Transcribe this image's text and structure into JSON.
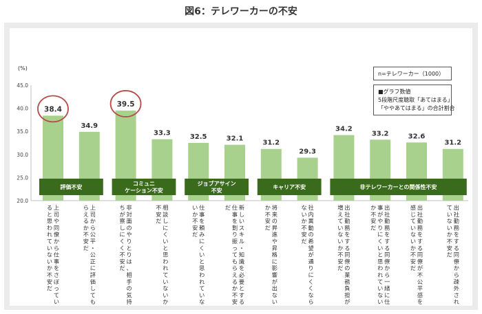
{
  "title": "図6：テレワーカーの不安",
  "legend": {
    "sample": "n=テレワーカー（1000）",
    "note_title": "■グラフ数値",
    "note_line1": "5段階尺度聴取「あてはまる」",
    "note_line2": "「ややあてはまる」の合計割合"
  },
  "colors": {
    "bar": "#a9d18e",
    "band": "#3a6b1c",
    "band_text": "#ffffff",
    "circle": "#b94a48",
    "frame": "#ebebeb"
  },
  "chart_data": {
    "type": "bar",
    "ylabel": "(%)",
    "ylim": [
      20,
      45
    ],
    "yticks": [
      "20.0",
      "25.0",
      "30.0",
      "35.0",
      "40.0",
      "45.0"
    ],
    "grid": false,
    "highlighted": [
      "38.4",
      "39.5"
    ],
    "groups": [
      {
        "name": "評価不安",
        "count": 2
      },
      {
        "name": "コミュニ\nケーション不安",
        "count": 2
      },
      {
        "name": "ジョブアサイン\n不安",
        "count": 2
      },
      {
        "name": "キャリア不安",
        "count": 2
      },
      {
        "name": "非テレワーカーとの関係性不安",
        "count": 4
      }
    ],
    "categories": [
      "上司や同僚から仕事をさぼっていると思われていないか不安だ",
      "上司から公平・公正に評価してもらえるか不安だ",
      "非対面のやりとりは、相手の気持ちが察しにくく不安だ",
      "相談しにくいと思われていないか不安だ",
      "仕事を頼みにくいと思われていないか不安だ",
      "新しいスキル・知識を必要とする仕事を割り振ってもらえるか不安だ",
      "将来の昇進や昇格に影響が出ないか不安だ",
      "社内異動の希望が通りにくくならないか不安だ",
      "出社勤務をする同僚の業務負担が増えていないか不安だ",
      "出社勤務をする同僚から一緒に仕事がやりにくいと思われていないか不安だ",
      "出社勤務をする同僚が不公平感を感じていないか不安だ",
      "出社勤務をする同僚から疎外されていないか不安だ"
    ],
    "values": [
      38.4,
      34.9,
      39.5,
      33.3,
      32.5,
      32.1,
      31.2,
      29.3,
      34.2,
      33.2,
      32.6,
      31.2
    ],
    "value_labels": [
      "38.4",
      "34.9",
      "39.5",
      "33.3",
      "32.5",
      "32.1",
      "31.2",
      "29.3",
      "34.2",
      "33.2",
      "32.6",
      "31.2"
    ]
  }
}
